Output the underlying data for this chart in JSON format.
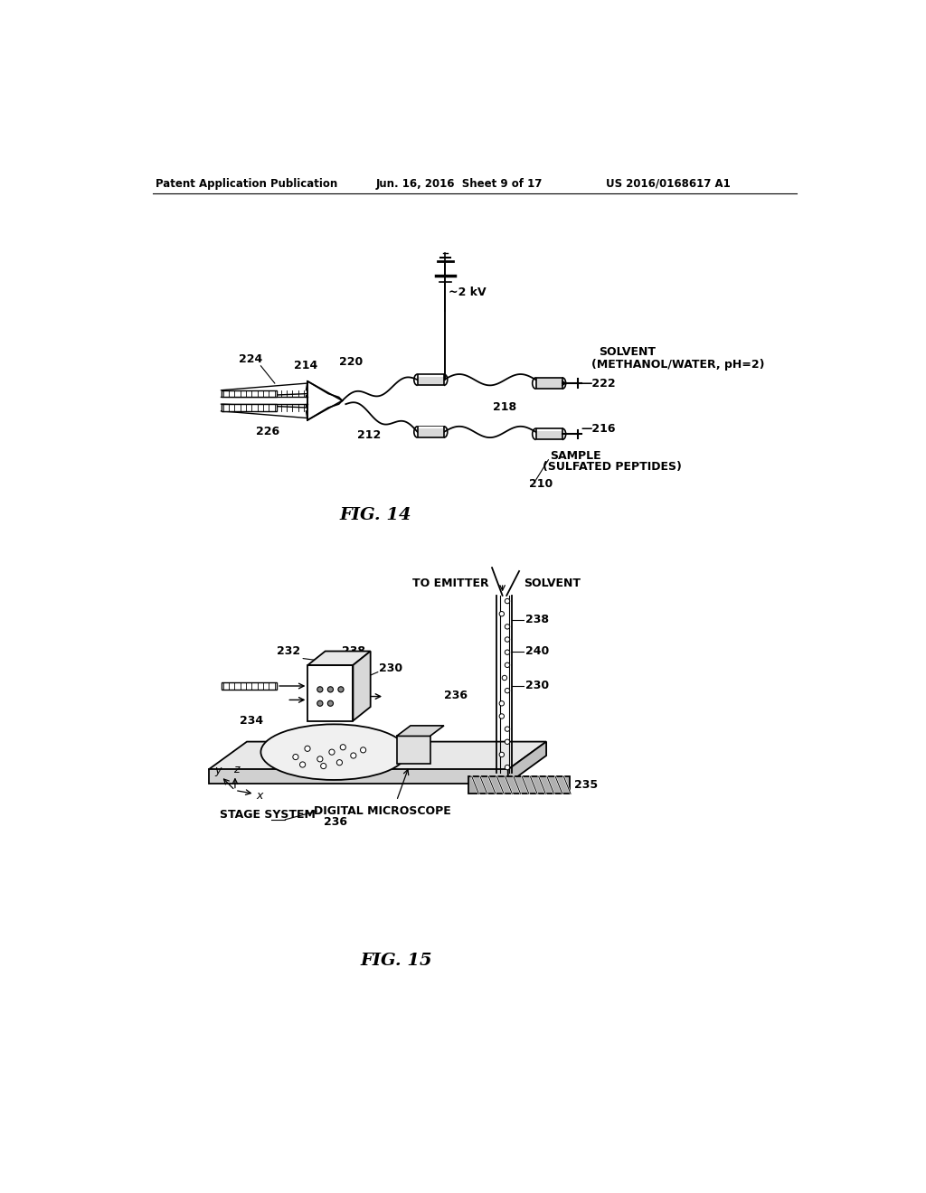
{
  "bg_color": "#ffffff",
  "header_left": "Patent Application Publication",
  "header_center": "Jun. 16, 2016  Sheet 9 of 17",
  "header_right": "US 2016/0168617 A1",
  "fig14_caption": "FIG. 14",
  "fig15_caption": "FIG. 15",
  "text_color": "#000000",
  "line_color": "#000000",
  "gray_light": "#cccccc",
  "gray_med": "#999999",
  "gray_dark": "#666666"
}
